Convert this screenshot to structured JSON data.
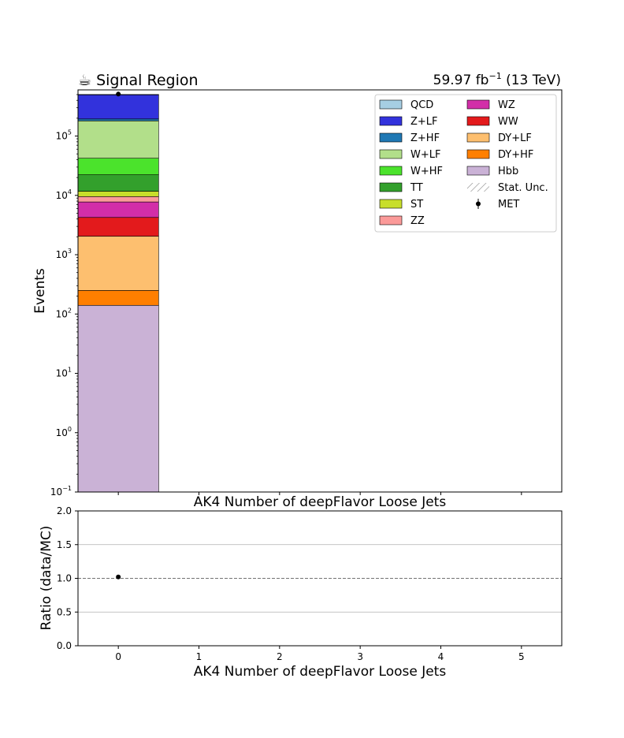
{
  "chart_data": [
    {
      "type": "bar",
      "stacked": true,
      "title_left": "☕ Signal Region",
      "title_right_base": "59.97 fb",
      "title_right_sup": "−1",
      "title_right_tail": " (13 TeV)",
      "xlabel": "AK4 Number of deepFlavor Loose Jets",
      "ylabel": "Events",
      "yscale": "log",
      "ylim": [
        0.1,
        600000
      ],
      "xlim": [
        -0.5,
        5.5
      ],
      "yticks": [
        {
          "value": 0.1,
          "base": "10",
          "exp": "−1"
        },
        {
          "value": 1,
          "base": "10",
          "exp": "0"
        },
        {
          "value": 10,
          "base": "10",
          "exp": "1"
        },
        {
          "value": 100,
          "base": "10",
          "exp": "2"
        },
        {
          "value": 1000,
          "base": "10",
          "exp": "3"
        },
        {
          "value": 10000,
          "base": "10",
          "exp": "4"
        },
        {
          "value": 100000,
          "base": "10",
          "exp": "5"
        }
      ],
      "bin": {
        "low": -0.5,
        "high": 0.5
      },
      "stack": [
        {
          "name": "Hbb",
          "value": 140,
          "color": "#cab2d6"
        },
        {
          "name": "DY+HF",
          "value": 110,
          "color": "#ff7f00"
        },
        {
          "name": "DY+LF",
          "value": 1800,
          "color": "#fdbf6f"
        },
        {
          "name": "WW",
          "value": 2200,
          "color": "#e31a1c"
        },
        {
          "name": "WZ",
          "value": 3500,
          "color": "#d22ea8"
        },
        {
          "name": "ZZ",
          "value": 1800,
          "color": "#fb9a99"
        },
        {
          "name": "ST",
          "value": 2200,
          "color": "#c8de2b"
        },
        {
          "name": "TT",
          "value": 10500,
          "color": "#33a02c"
        },
        {
          "name": "W+HF",
          "value": 20000,
          "color": "#4be32c"
        },
        {
          "name": "W+LF",
          "value": 138000,
          "color": "#b2df8a"
        },
        {
          "name": "Z+HF",
          "value": 14000,
          "color": "#1f78b4"
        },
        {
          "name": "Z+LF",
          "value": 307000,
          "color": "#3232dc"
        },
        {
          "name": "QCD",
          "value": 500,
          "color": "#a6cee3"
        }
      ],
      "data_points": [
        {
          "x": 0,
          "y": 510000
        }
      ],
      "legend": {
        "placement": "top-right",
        "columns": [
          [
            {
              "label": "QCD",
              "kind": "patch",
              "color": "#a6cee3"
            },
            {
              "label": "Z+LF",
              "kind": "patch",
              "color": "#3232dc"
            },
            {
              "label": "Z+HF",
              "kind": "patch",
              "color": "#1f78b4"
            },
            {
              "label": "W+LF",
              "kind": "patch",
              "color": "#b2df8a"
            },
            {
              "label": "W+HF",
              "kind": "patch",
              "color": "#4be32c"
            },
            {
              "label": "TT",
              "kind": "patch",
              "color": "#33a02c"
            },
            {
              "label": "ST",
              "kind": "patch",
              "color": "#c8de2b"
            },
            {
              "label": "ZZ",
              "kind": "patch",
              "color": "#fb9a99"
            }
          ],
          [
            {
              "label": "WZ",
              "kind": "patch",
              "color": "#d22ea8"
            },
            {
              "label": "WW",
              "kind": "patch",
              "color": "#e31a1c"
            },
            {
              "label": "DY+LF",
              "kind": "patch",
              "color": "#fdbf6f"
            },
            {
              "label": "DY+HF",
              "kind": "patch",
              "color": "#ff7f00"
            },
            {
              "label": "Hbb",
              "kind": "patch",
              "color": "#cab2d6"
            },
            {
              "label": "Stat. Unc.",
              "kind": "hatch",
              "color": "#888888"
            },
            {
              "label": "MET",
              "kind": "marker",
              "color": "#000000"
            }
          ]
        ]
      }
    },
    {
      "type": "scatter",
      "xlabel_above": "AK4 Number of deepFlavor Loose Jets",
      "xlabel": "AK4 Number of deepFlavor Loose Jets",
      "ylabel": "Ratio (data/MC)",
      "ylim": [
        0.0,
        2.0
      ],
      "xlim": [
        -0.5,
        5.5
      ],
      "yticks": [
        "0.0",
        "0.5",
        "1.0",
        "1.5",
        "2.0"
      ],
      "xticks": [
        "0",
        "1",
        "2",
        "3",
        "4",
        "5"
      ],
      "grid": "horizontal",
      "reference_line": 1.0,
      "points": [
        {
          "x": 0,
          "y": 1.02
        }
      ]
    }
  ]
}
